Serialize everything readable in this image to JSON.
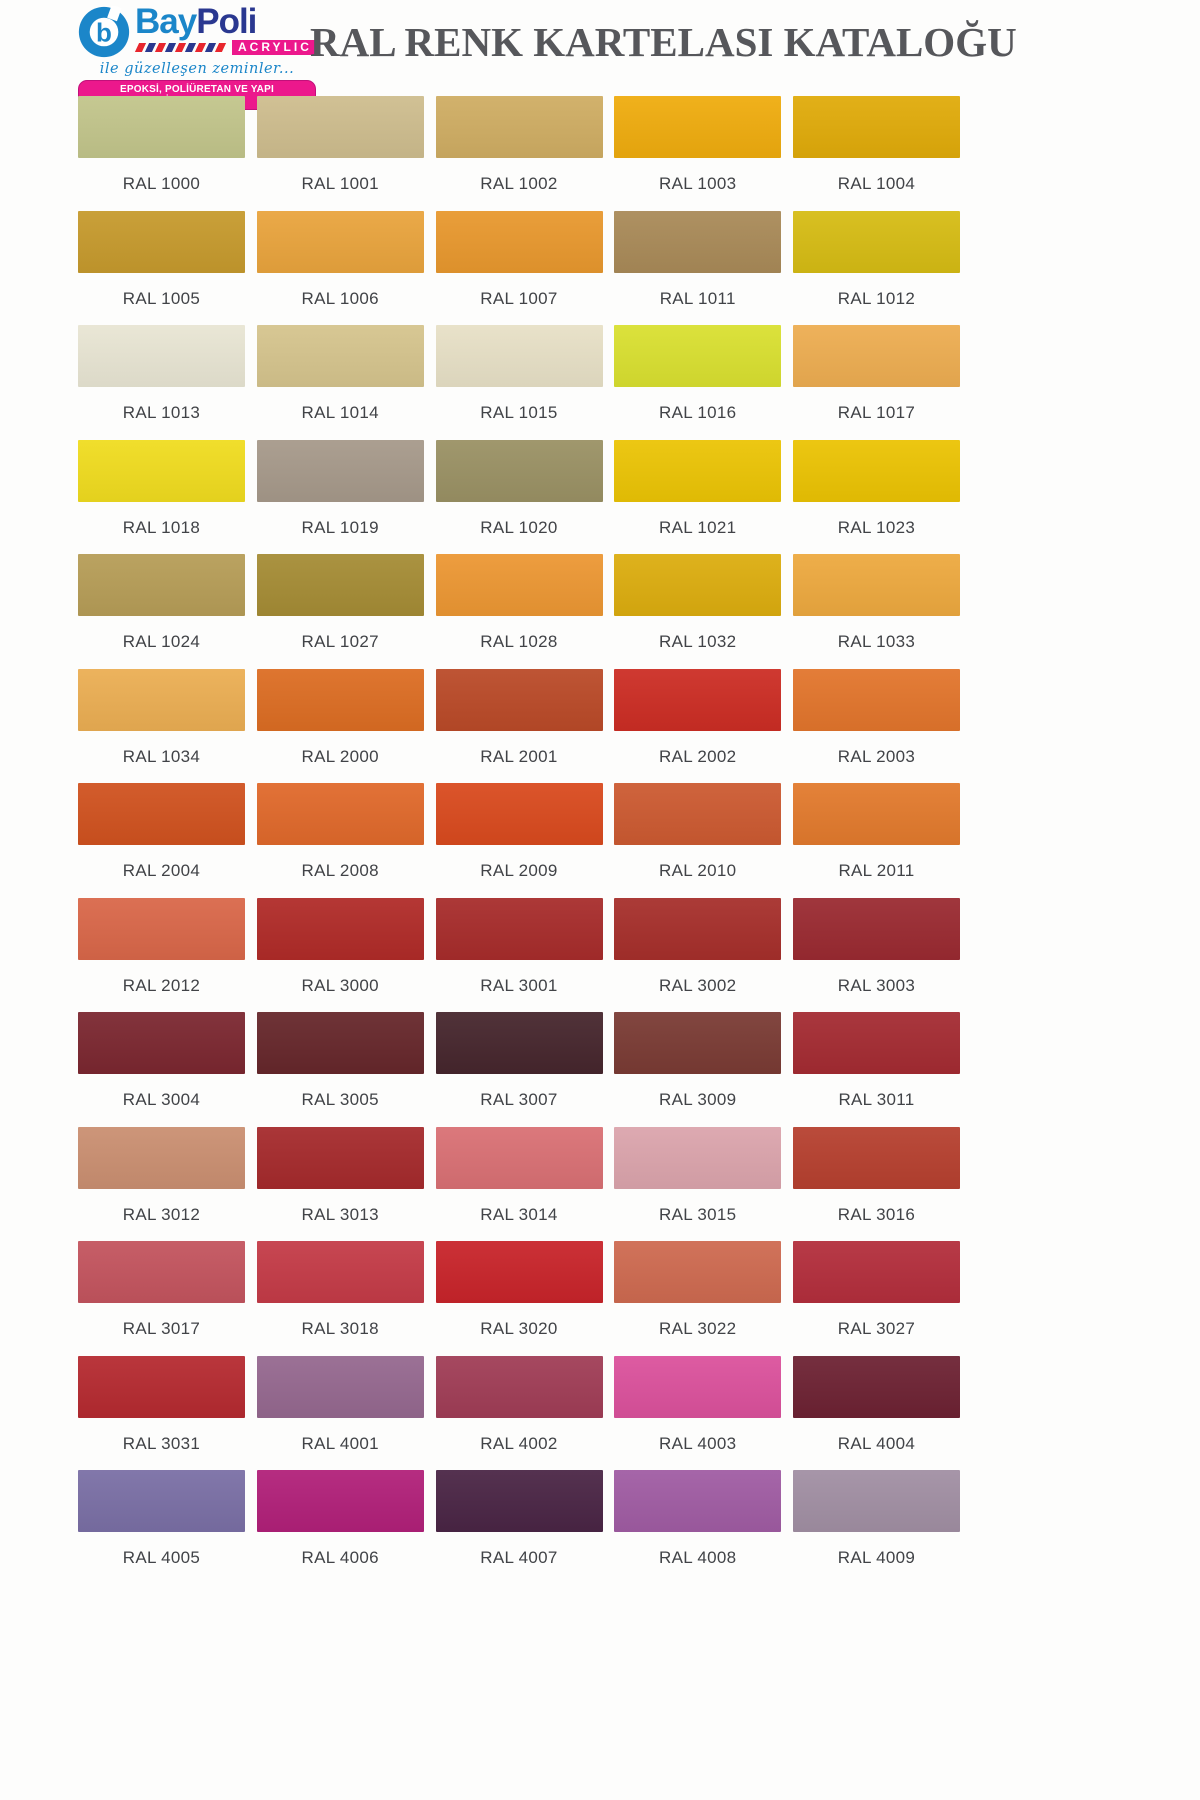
{
  "page": {
    "title": "RAL RENK KARTELASI KATALOĞU",
    "title_color": "#56575B",
    "background": "#FDFDFC",
    "label_color": "#414347"
  },
  "logo": {
    "brand_part1": "Bay",
    "brand_part2": "Poli",
    "acrylic_label": "ACRYLIC",
    "tagline": "ile güzelleşen zeminler...",
    "banner": "EPOKSİ, POLİÜRETAN VE YAPI KİMYASALLARI",
    "colors": {
      "light_blue": "#1B86C9",
      "navy": "#2A3890",
      "magenta": "#EC188C"
    },
    "stripe_colors": [
      "#E8262D",
      "#2A3890",
      "#E8262D",
      "#2A3890",
      "#E8262D",
      "#2A3890",
      "#E8262D",
      "#2A3890",
      "#E8262D"
    ]
  },
  "swatches": [
    {
      "code": "RAL 1000",
      "color": "#C2C58B"
    },
    {
      "code": "RAL 1001",
      "color": "#CEBD8E"
    },
    {
      "code": "RAL 1002",
      "color": "#CFAD63"
    },
    {
      "code": "RAL 1003",
      "color": "#EFAC0E"
    },
    {
      "code": "RAL 1004",
      "color": "#E0AB0A"
    },
    {
      "code": "RAL 1005",
      "color": "#C69A2D"
    },
    {
      "code": "RAL 1006",
      "color": "#E9A43D"
    },
    {
      "code": "RAL 1007",
      "color": "#E8982E"
    },
    {
      "code": "RAL 1011",
      "color": "#A98A58"
    },
    {
      "code": "RAL 1012",
      "color": "#D6BC14"
    },
    {
      "code": "RAL 1013",
      "color": "#E8E5D3"
    },
    {
      "code": "RAL 1014",
      "color": "#D5C48D"
    },
    {
      "code": "RAL 1015",
      "color": "#E7E0C6"
    },
    {
      "code": "RAL 1016",
      "color": "#D9E030"
    },
    {
      "code": "RAL 1017",
      "color": "#EDAD51"
    },
    {
      "code": "RAL 1018",
      "color": "#F0DC1F"
    },
    {
      "code": "RAL 1019",
      "color": "#A6998A"
    },
    {
      "code": "RAL 1020",
      "color": "#9A9164"
    },
    {
      "code": "RAL 1021",
      "color": "#EBC405"
    },
    {
      "code": "RAL 1023",
      "color": "#EBC303"
    },
    {
      "code": "RAL 1024",
      "color": "#B69D57"
    },
    {
      "code": "RAL 1027",
      "color": "#A58C35"
    },
    {
      "code": "RAL 1028",
      "color": "#EC9733"
    },
    {
      "code": "RAL 1032",
      "color": "#DCAD0F"
    },
    {
      "code": "RAL 1033",
      "color": "#EDA93F"
    },
    {
      "code": "RAL 1034",
      "color": "#EBAE53"
    },
    {
      "code": "RAL 2000",
      "color": "#DC6D23"
    },
    {
      "code": "RAL 2001",
      "color": "#BA4A28"
    },
    {
      "code": "RAL 2002",
      "color": "#CC2D24"
    },
    {
      "code": "RAL 2003",
      "color": "#E2752C"
    },
    {
      "code": "RAL 2004",
      "color": "#D0521F"
    },
    {
      "code": "RAL 2008",
      "color": "#E0692B"
    },
    {
      "code": "RAL 2009",
      "color": "#D94A1E"
    },
    {
      "code": "RAL 2010",
      "color": "#CC5A31"
    },
    {
      "code": "RAL 2011",
      "color": "#E27A2D"
    },
    {
      "code": "RAL 2012",
      "color": "#D96749"
    },
    {
      "code": "RAL 3000",
      "color": "#B02B28"
    },
    {
      "code": "RAL 3001",
      "color": "#A72C2B"
    },
    {
      "code": "RAL 3002",
      "color": "#A62F2B"
    },
    {
      "code": "RAL 3003",
      "color": "#9A2A31"
    },
    {
      "code": "RAL 3004",
      "color": "#7B2730"
    },
    {
      "code": "RAL 3005",
      "color": "#66272B"
    },
    {
      "code": "RAL 3007",
      "color": "#46262D"
    },
    {
      "code": "RAL 3009",
      "color": "#7A3B34"
    },
    {
      "code": "RAL 3011",
      "color": "#A42B32"
    },
    {
      "code": "RAL 3012",
      "color": "#CA8F71"
    },
    {
      "code": "RAL 3013",
      "color": "#A52A2C"
    },
    {
      "code": "RAL 3014",
      "color": "#D97074"
    },
    {
      "code": "RAL 3015",
      "color": "#DBA4AC"
    },
    {
      "code": "RAL 3016",
      "color": "#B6402F"
    },
    {
      "code": "RAL 3017",
      "color": "#C3545E"
    },
    {
      "code": "RAL 3018",
      "color": "#C43B47"
    },
    {
      "code": "RAL 3020",
      "color": "#C8242A"
    },
    {
      "code": "RAL 3022",
      "color": "#CE6A50"
    },
    {
      "code": "RAL 3027",
      "color": "#B32E3C"
    },
    {
      "code": "RAL 3031",
      "color": "#B52A30"
    },
    {
      "code": "RAL 4001",
      "color": "#95688F"
    },
    {
      "code": "RAL 4002",
      "color": "#A03D56"
    },
    {
      "code": "RAL 4003",
      "color": "#DB519C"
    },
    {
      "code": "RAL 4004",
      "color": "#6D2233"
    },
    {
      "code": "RAL 4005",
      "color": "#7A6FA5"
    },
    {
      "code": "RAL 4006",
      "color": "#B12079"
    },
    {
      "code": "RAL 4007",
      "color": "#4A2545"
    },
    {
      "code": "RAL 4008",
      "color": "#A05CA3"
    },
    {
      "code": "RAL 4009",
      "color": "#A18FA3"
    }
  ]
}
